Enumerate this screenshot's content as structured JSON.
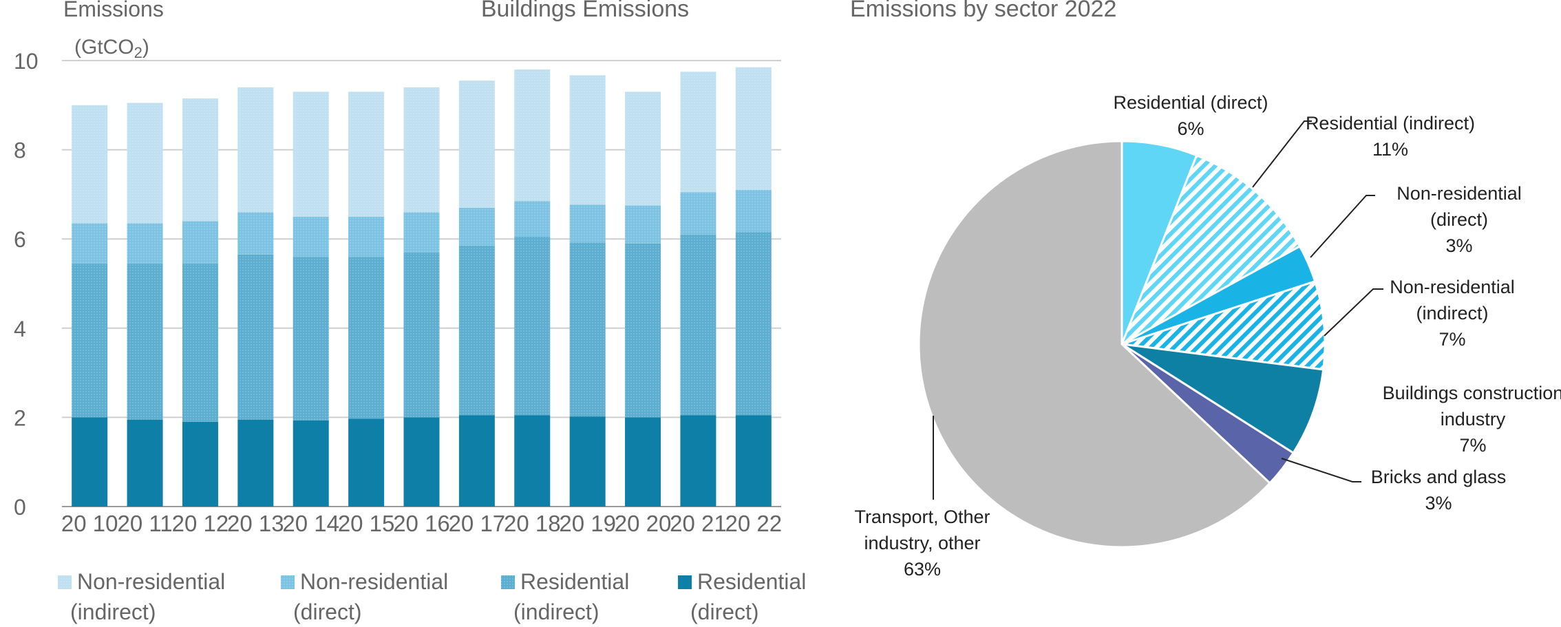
{
  "chart_data": [
    {
      "type": "bar",
      "stacked": true,
      "title": "Buildings Emissions",
      "ylabel": "Emissions",
      "ylabel_unit": "(GtCO",
      "ylabel_unit_sub": "2",
      "ylabel_unit_close": ")",
      "ylim": [
        0,
        10
      ],
      "yticks": [
        "0",
        "2",
        "4",
        "6",
        "8",
        "10"
      ],
      "grid": "horizontal",
      "legend_position": "bottom",
      "categories": [
        "2010",
        "2011",
        "2012",
        "2013",
        "2014",
        "2015",
        "2016",
        "2017",
        "2018",
        "2019",
        "2020",
        "2021",
        "2022"
      ],
      "category_labels": [
        "20 10",
        "20 11",
        "20 12",
        "20 13",
        "20 14",
        "20 15",
        "20 16",
        "20 17",
        "20 18",
        "20 19",
        "20 20",
        "20 21",
        "20 22"
      ],
      "series": [
        {
          "key": "res_direct",
          "name_line1": "Residential",
          "name_line2": "(direct)",
          "color": "#0e7fa6",
          "values": [
            2.0,
            1.95,
            1.9,
            1.95,
            1.93,
            1.97,
            2.0,
            2.05,
            2.05,
            2.02,
            2.0,
            2.05,
            2.05
          ]
        },
        {
          "key": "res_indirect",
          "name_line1": "Residential",
          "name_line2": "(indirect)",
          "color": "#5baed0",
          "values": [
            3.45,
            3.5,
            3.55,
            3.7,
            3.67,
            3.63,
            3.7,
            3.8,
            4.0,
            3.9,
            3.9,
            4.05,
            4.1
          ]
        },
        {
          "key": "nonres_direct",
          "name_line1": "Non-residential",
          "name_line2": "(direct)",
          "color": "#7cc3e3",
          "values": [
            0.9,
            0.9,
            0.95,
            0.95,
            0.9,
            0.9,
            0.9,
            0.85,
            0.8,
            0.85,
            0.85,
            0.95,
            0.95
          ]
        },
        {
          "key": "nonres_indirect",
          "name_line1": "Non-residential",
          "name_line2": "(indirect)",
          "color": "#bfe0f0",
          "values": [
            2.65,
            2.7,
            2.75,
            2.8,
            2.8,
            2.8,
            2.8,
            2.85,
            2.95,
            2.9,
            2.55,
            2.7,
            2.75
          ]
        }
      ],
      "legend_order": [
        "nonres_indirect",
        "nonres_direct",
        "res_indirect",
        "res_direct"
      ]
    },
    {
      "type": "pie",
      "title": "Emissions by sector 2022",
      "slices": [
        {
          "key": "res_direct",
          "label_lines": [
            "Residential (direct)",
            "6%"
          ],
          "value": 6,
          "color": "#5fd6f5",
          "pattern": "solid"
        },
        {
          "key": "res_indirect",
          "label_lines": [
            "Residential (indirect)",
            "11%"
          ],
          "value": 11,
          "color": "#5fd6f5",
          "pattern": "hatch"
        },
        {
          "key": "nonres_direct",
          "label_lines": [
            "Non-residential",
            "(direct)",
            "3%"
          ],
          "value": 3,
          "color": "#1ab3e6",
          "pattern": "solid"
        },
        {
          "key": "nonres_indirect",
          "label_lines": [
            "Non-residential",
            "(indirect)",
            "7%"
          ],
          "value": 7,
          "color": "#1ab3e6",
          "pattern": "hatch"
        },
        {
          "key": "bldg_construction",
          "label_lines": [
            "Buildings construction",
            "industry",
            "7%"
          ],
          "value": 7,
          "color": "#0e80a3",
          "pattern": "solid"
        },
        {
          "key": "bricks_glass",
          "label_lines": [
            "Bricks and glass",
            "3%"
          ],
          "value": 3,
          "color": "#5a64a8",
          "pattern": "solid"
        },
        {
          "key": "transport_other",
          "label_lines": [
            "Transport, Other",
            "industry, other",
            "63%"
          ],
          "value": 63,
          "color": "#bdbdbd",
          "pattern": "solid"
        }
      ]
    }
  ]
}
